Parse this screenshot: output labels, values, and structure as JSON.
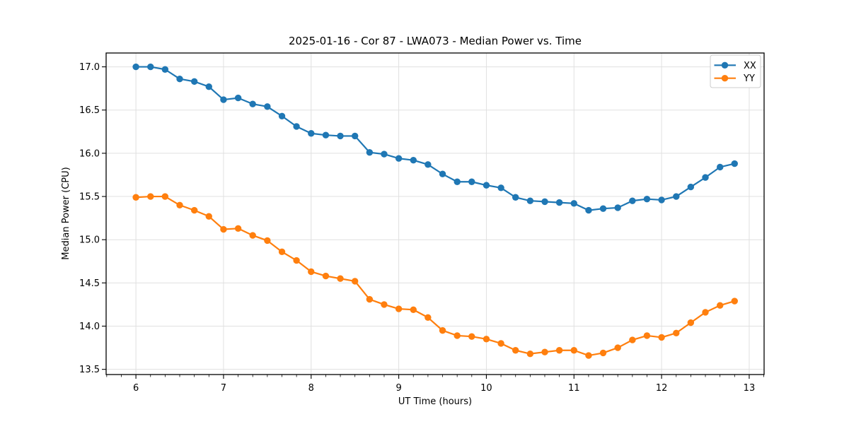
{
  "chart_data": {
    "type": "line",
    "title": "2025-01-16 - Cor 87 - LWA073 - Median Power vs. Time",
    "xlabel": "UT Time (hours)",
    "ylabel": "Median Power (CPU)",
    "xlim": [
      5.66,
      13.17
    ],
    "ylim": [
      13.44,
      17.16
    ],
    "x_ticks": [
      6,
      7,
      8,
      9,
      10,
      11,
      12,
      13
    ],
    "x_tick_labels": [
      "6",
      "7",
      "8",
      "9",
      "10",
      "11",
      "12",
      "13"
    ],
    "y_ticks": [
      13.5,
      14.0,
      14.5,
      15.0,
      15.5,
      16.0,
      16.5,
      17.0
    ],
    "y_tick_labels": [
      "13.5",
      "14.0",
      "14.5",
      "15.0",
      "15.5",
      "16.0",
      "16.5",
      "17.0"
    ],
    "x_minor_step": 0.166667,
    "grid": true,
    "legend_position": "upper right",
    "x": [
      6.0,
      6.167,
      6.333,
      6.5,
      6.667,
      6.833,
      7.0,
      7.167,
      7.333,
      7.5,
      7.667,
      7.833,
      8.0,
      8.167,
      8.333,
      8.5,
      8.667,
      8.833,
      9.0,
      9.167,
      9.333,
      9.5,
      9.667,
      9.833,
      10.0,
      10.167,
      10.333,
      10.5,
      10.667,
      10.833,
      11.0,
      11.167,
      11.333,
      11.5,
      11.667,
      11.833,
      12.0,
      12.167,
      12.333,
      12.5,
      12.667,
      12.833
    ],
    "series": [
      {
        "name": "XX",
        "color": "#1f77b4",
        "values": [
          17.0,
          17.0,
          16.97,
          16.86,
          16.83,
          16.77,
          16.62,
          16.64,
          16.57,
          16.54,
          16.43,
          16.31,
          16.23,
          16.21,
          16.2,
          16.2,
          16.01,
          15.99,
          15.94,
          15.92,
          15.87,
          15.76,
          15.67,
          15.67,
          15.63,
          15.6,
          15.49,
          15.45,
          15.44,
          15.43,
          15.42,
          15.34,
          15.36,
          15.37,
          15.45,
          15.47,
          15.46,
          15.5,
          15.61,
          15.72,
          15.84,
          15.88
        ]
      },
      {
        "name": "YY",
        "color": "#ff7f0e",
        "values": [
          15.49,
          15.5,
          15.5,
          15.4,
          15.34,
          15.27,
          15.12,
          15.13,
          15.05,
          14.99,
          14.86,
          14.76,
          14.63,
          14.58,
          14.55,
          14.52,
          14.31,
          14.25,
          14.2,
          14.19,
          14.1,
          13.95,
          13.89,
          13.88,
          13.85,
          13.8,
          13.72,
          13.68,
          13.7,
          13.72,
          13.72,
          13.66,
          13.69,
          13.75,
          13.84,
          13.89,
          13.87,
          13.92,
          14.04,
          14.16,
          14.24,
          14.29
        ]
      }
    ],
    "style": {
      "grid_color": "#e0e0e0",
      "spine_color": "#000000",
      "tick_color": "#000000",
      "legend_border_color": "#cccccc",
      "legend_background": "#ffffff",
      "plot_background": "#ffffff"
    }
  }
}
